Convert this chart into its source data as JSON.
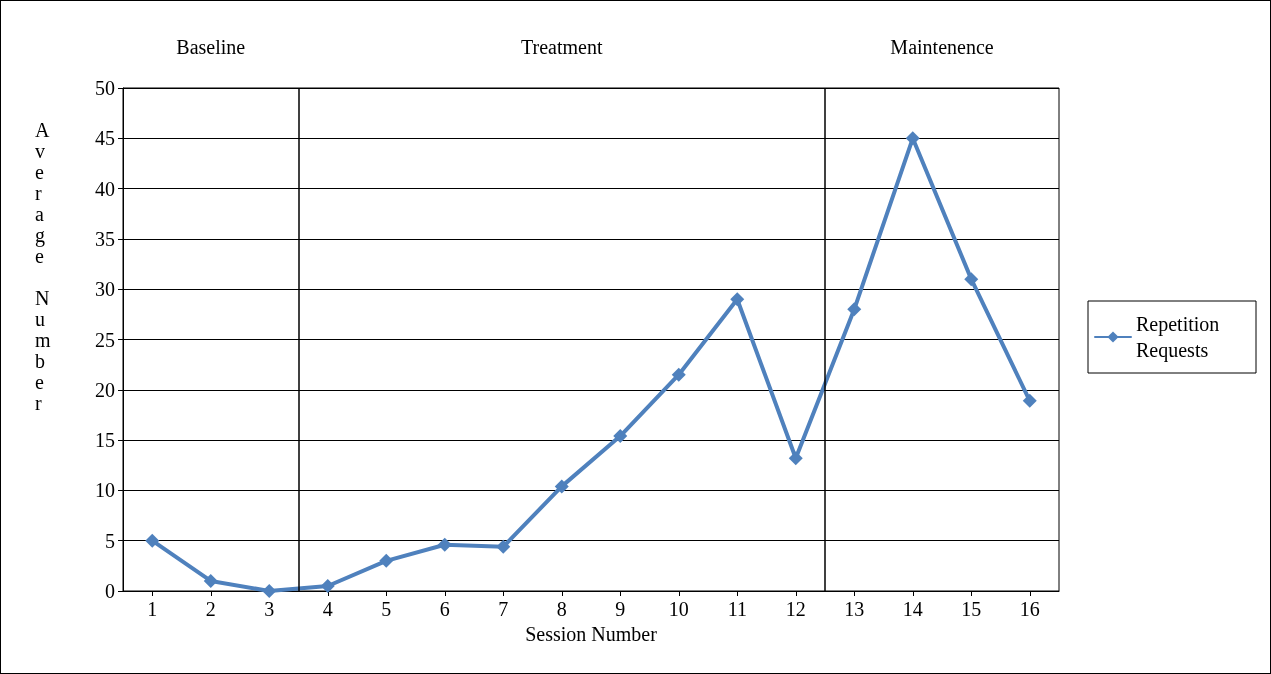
{
  "chart_data": {
    "type": "line",
    "xlabel": "Session Number",
    "ylabel": "Average Number",
    "x": [
      1,
      2,
      3,
      4,
      5,
      6,
      7,
      8,
      9,
      10,
      11,
      12,
      13,
      14,
      15,
      16
    ],
    "xlim": [
      0.5,
      16.5
    ],
    "xticks": [
      1,
      2,
      3,
      4,
      5,
      6,
      7,
      8,
      9,
      10,
      11,
      12,
      13,
      14,
      15,
      16
    ],
    "ylim": [
      0,
      50
    ],
    "yticks": [
      0,
      5,
      10,
      15,
      20,
      25,
      30,
      35,
      40,
      45,
      50
    ],
    "series": [
      {
        "name": "Repetition Requests",
        "color": "#4f81bd",
        "values": [
          5,
          1,
          0,
          0.5,
          3,
          4.6,
          4.4,
          10.4,
          15.4,
          21.5,
          29,
          13.2,
          28,
          45,
          31,
          18.9
        ]
      }
    ],
    "ref_lines": [
      {
        "axis": "x",
        "value": 3.5,
        "color": "#000000"
      },
      {
        "axis": "x",
        "value": 12.5,
        "color": "#000000"
      }
    ],
    "annotations": [
      "Baseline",
      "Treatment",
      "Maintenence"
    ],
    "grid": "y",
    "legend": "right",
    "marker": "diamond",
    "line_style": "solid"
  }
}
